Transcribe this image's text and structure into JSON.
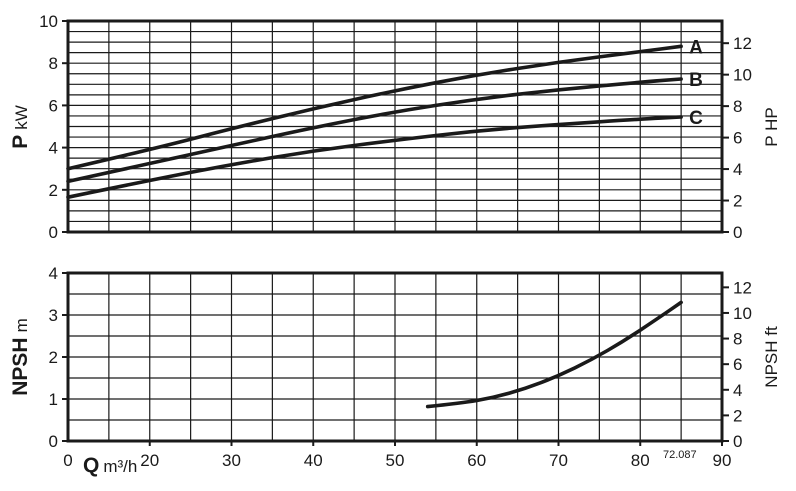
{
  "chart_data": [
    {
      "type": "line",
      "panel": "power",
      "ylabel_bold": "P",
      "ylabel_unit": "kW",
      "ylabel_right": "P HP",
      "xlim": [
        10,
        90
      ],
      "ylim": [
        0,
        10
      ],
      "ylim_right": [
        0,
        13.41
      ],
      "y_ticks": [
        "0",
        "2",
        "4",
        "6",
        "8",
        "10"
      ],
      "y_right_ticks": [
        "0",
        "2",
        "4",
        "6",
        "8",
        "10",
        "12"
      ],
      "grid": true,
      "series": [
        {
          "name": "A",
          "x": [
            10,
            20,
            30,
            40,
            50,
            60,
            70,
            80,
            85
          ],
          "y": [
            3.0,
            3.9,
            4.9,
            5.85,
            6.7,
            7.45,
            8.05,
            8.55,
            8.8
          ]
        },
        {
          "name": "B",
          "x": [
            10,
            20,
            30,
            40,
            50,
            60,
            70,
            80,
            85
          ],
          "y": [
            2.4,
            3.25,
            4.1,
            4.95,
            5.7,
            6.3,
            6.75,
            7.1,
            7.25
          ]
        },
        {
          "name": "C",
          "x": [
            10,
            20,
            30,
            40,
            50,
            60,
            70,
            80,
            85
          ],
          "y": [
            1.65,
            2.45,
            3.2,
            3.85,
            4.35,
            4.8,
            5.1,
            5.35,
            5.45
          ]
        }
      ]
    },
    {
      "type": "line",
      "panel": "npsh",
      "ylabel_bold": "NPSH",
      "ylabel_unit": "m",
      "ylabel_right": "NPSH ft",
      "xlabel_bold": "Q",
      "xlabel_unit": "m³/h",
      "x_ticks": [
        "0",
        "20",
        "30",
        "40",
        "50",
        "60",
        "70",
        "80",
        "90"
      ],
      "xlim": [
        10,
        90
      ],
      "ylim": [
        0,
        4
      ],
      "ylim_right": [
        0,
        13.12
      ],
      "y_ticks": [
        "0",
        "1",
        "2",
        "3",
        "4"
      ],
      "y_right_ticks": [
        "0",
        "2",
        "4",
        "6",
        "8",
        "10",
        "12"
      ],
      "grid": true,
      "series": [
        {
          "name": "NPSH",
          "x": [
            54,
            58,
            62,
            66,
            70,
            74,
            78,
            82,
            85
          ],
          "y": [
            0.82,
            0.9,
            1.03,
            1.25,
            1.55,
            1.93,
            2.38,
            2.9,
            3.3
          ]
        }
      ]
    }
  ],
  "figure_code": "72.087"
}
